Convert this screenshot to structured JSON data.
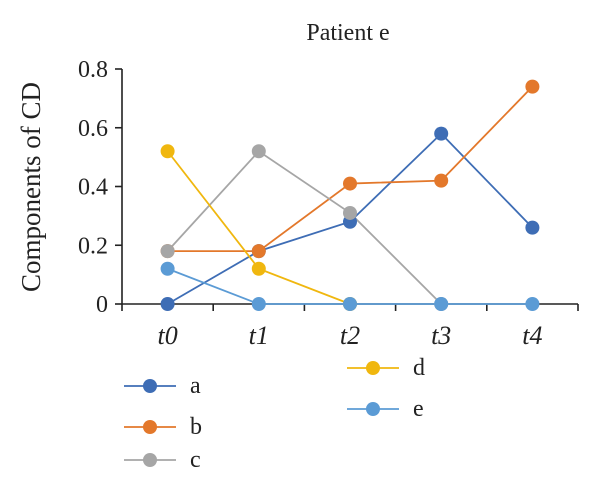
{
  "chart_data": {
    "type": "line",
    "title": "Patient e",
    "xlabel": "",
    "ylabel": "Components of CD",
    "categories": [
      "t0",
      "t1",
      "t2",
      "t3",
      "t4"
    ],
    "ylim": [
      0,
      0.8
    ],
    "yticks": [
      0,
      0.2,
      0.4,
      0.6,
      0.8
    ],
    "ytick_labels": [
      "0",
      "0.2",
      "0.4",
      "0.6",
      "0.8"
    ],
    "grid": false,
    "legend_position": "bottom",
    "series": [
      {
        "name": "a",
        "color": "#3e6db5",
        "values": [
          0,
          0.18,
          0.28,
          0.58,
          0.26
        ]
      },
      {
        "name": "b",
        "color": "#e3782b",
        "values": [
          0.18,
          0.18,
          0.41,
          0.42,
          0.74
        ]
      },
      {
        "name": "c",
        "color": "#a6a6a6",
        "values": [
          0.18,
          0.52,
          0.31,
          0,
          null
        ]
      },
      {
        "name": "d",
        "color": "#f0b70f",
        "values": [
          0.52,
          0.12,
          0,
          null,
          null
        ]
      },
      {
        "name": "e",
        "color": "#5b9bd5",
        "values": [
          0.12,
          0,
          0,
          0,
          0
        ]
      }
    ]
  }
}
